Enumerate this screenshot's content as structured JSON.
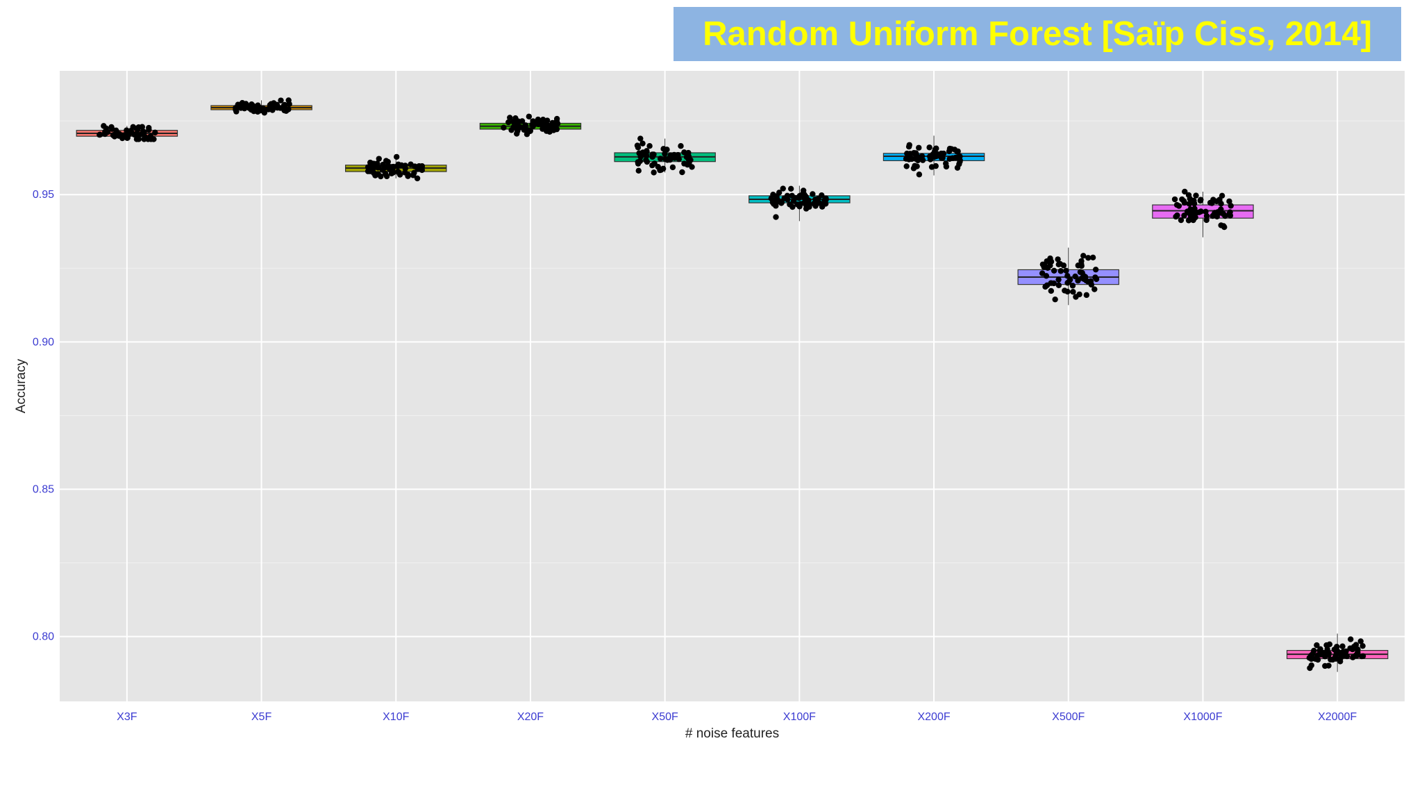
{
  "banner": {
    "title": "Random Uniform Forest [Saïp Ciss, 2014]",
    "background": "#8db4e2",
    "text_color": "#ffff00"
  },
  "chart_data": {
    "type": "boxplot",
    "title": "",
    "xlabel": "# noise features",
    "ylabel": "Accuracy",
    "ylim": [
      0.778,
      0.992
    ],
    "yticks": [
      0.8,
      0.85,
      0.9,
      0.95
    ],
    "ytick_labels": [
      "0.80",
      "0.85",
      "0.90",
      "0.95"
    ],
    "grid": true,
    "legend": "none",
    "panel_background": "#e5e5e5",
    "categories": [
      "X3F",
      "X5F",
      "X10F",
      "X20F",
      "X50F",
      "X100F",
      "X200F",
      "X500F",
      "X1000F",
      "X2000F"
    ],
    "boxes": [
      {
        "name": "X3F",
        "q1": 0.9698,
        "median": 0.9708,
        "q3": 0.9718,
        "min": 0.9688,
        "max": 0.9733,
        "color": "#f8766d"
      },
      {
        "name": "X5F",
        "q1": 0.9788,
        "median": 0.9795,
        "q3": 0.9802,
        "min": 0.9778,
        "max": 0.982,
        "color": "#d89000"
      },
      {
        "name": "X10F",
        "q1": 0.9578,
        "median": 0.959,
        "q3": 0.96,
        "min": 0.9555,
        "max": 0.9628,
        "color": "#a3a500"
      },
      {
        "name": "X20F",
        "q1": 0.9722,
        "median": 0.9732,
        "q3": 0.9742,
        "min": 0.9705,
        "max": 0.9765,
        "color": "#39b600"
      },
      {
        "name": "X50F",
        "q1": 0.9612,
        "median": 0.9628,
        "q3": 0.9642,
        "min": 0.9575,
        "max": 0.969,
        "color": "#00bf7d"
      },
      {
        "name": "X100F",
        "q1": 0.9472,
        "median": 0.9484,
        "q3": 0.9496,
        "min": 0.941,
        "max": 0.953,
        "color": "#00bfc4"
      },
      {
        "name": "X200F",
        "q1": 0.9615,
        "median": 0.963,
        "q3": 0.964,
        "min": 0.9565,
        "max": 0.97,
        "color": "#00b0f6"
      },
      {
        "name": "X500F",
        "q1": 0.9195,
        "median": 0.922,
        "q3": 0.9245,
        "min": 0.9125,
        "max": 0.932,
        "color": "#9590ff"
      },
      {
        "name": "X1000F",
        "q1": 0.942,
        "median": 0.9445,
        "q3": 0.9465,
        "min": 0.9355,
        "max": 0.951,
        "color": "#e76bf3"
      },
      {
        "name": "X2000F",
        "q1": 0.7925,
        "median": 0.794,
        "q3": 0.7953,
        "min": 0.788,
        "max": 0.801,
        "color": "#ff62bc"
      }
    ],
    "jitter_points_per_box": 60
  }
}
